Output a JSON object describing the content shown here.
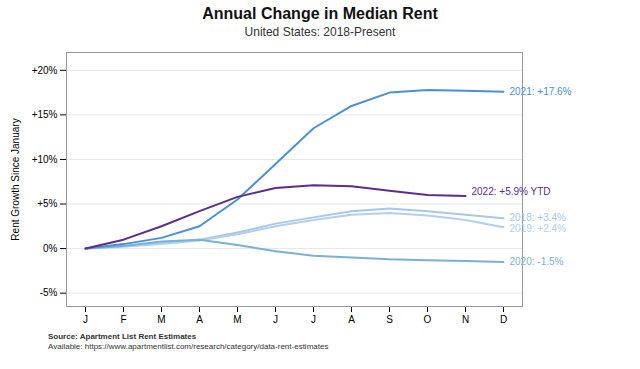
{
  "chart_data": {
    "type": "line",
    "title": "Annual Change in Median Rent",
    "subtitle": "United States: 2018-Present",
    "ylabel": "Rent Growth Since January",
    "source": [
      "Source: Apartment List Rent Estimates",
      "Available: https://www.apartmentlist.com/research/category/data-rent-estimates"
    ],
    "categories": [
      "J",
      "F",
      "M",
      "A",
      "M",
      "J",
      "J",
      "A",
      "S",
      "O",
      "N",
      "D"
    ],
    "series": [
      {
        "name": "2018: +3.4%",
        "color": "#a8c8e8",
        "values": [
          0.0,
          0.3,
          0.6,
          1.0,
          1.8,
          2.8,
          3.5,
          4.2,
          4.5,
          4.2,
          3.8,
          3.4
        ]
      },
      {
        "name": "2019: +2.4%",
        "color": "#b0d0ee",
        "values": [
          0.0,
          0.2,
          0.5,
          0.9,
          1.6,
          2.5,
          3.2,
          3.8,
          4.0,
          3.7,
          3.2,
          2.4
        ]
      },
      {
        "name": "2020: -1.5%",
        "color": "#7ab0d8",
        "values": [
          0.0,
          0.3,
          0.8,
          1.0,
          0.4,
          -0.3,
          -0.8,
          -1.0,
          -1.2,
          -1.3,
          -1.4,
          -1.5
        ]
      },
      {
        "name": "2021: +17.6%",
        "color": "#4a90d9",
        "values": [
          0.0,
          0.5,
          1.2,
          2.5,
          5.5,
          9.5,
          13.5,
          16.0,
          17.5,
          17.8,
          17.7,
          17.6
        ]
      },
      {
        "name": "2022: +5.9% YTD",
        "color": "#5b2d8e",
        "values": [
          0.0,
          1.0,
          2.5,
          4.2,
          5.8,
          6.8,
          7.1,
          7.0,
          6.5,
          6.0,
          5.9,
          null
        ]
      }
    ],
    "ylim": [
      -6.5,
      22
    ],
    "yticks": [
      {
        "value": -5,
        "label": "-5%"
      },
      {
        "value": 0,
        "label": "0%"
      },
      {
        "value": 5,
        "label": "+5%"
      },
      {
        "value": 10,
        "label": "+10%"
      },
      {
        "value": 15,
        "label": "+15%"
      },
      {
        "value": 20,
        "label": "+20%"
      }
    ],
    "grid": true
  }
}
